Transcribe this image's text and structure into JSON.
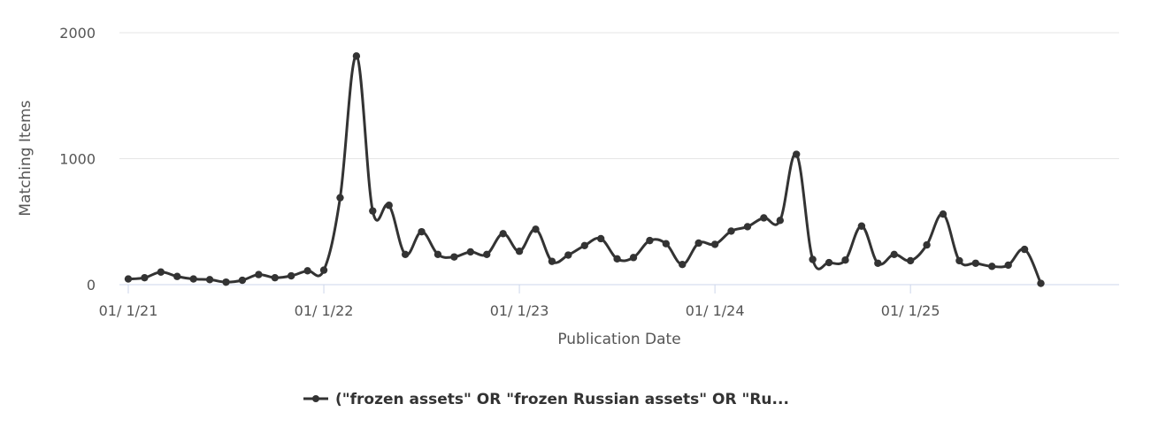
{
  "chart_data": {
    "type": "line",
    "ylabel": "Matching Items",
    "xlabel": "Publication Date",
    "x_tick_labels": [
      "01/ 1/21",
      "01/ 1/22",
      "01/ 1/23",
      "01/ 1/24",
      "01/ 1/25"
    ],
    "y_tick_labels": [
      "0",
      "1000",
      "2000"
    ],
    "ylim": [
      0,
      2000
    ],
    "x_range_months": "2021-01 to 2025-09",
    "grid": "horizontal",
    "legend_position": "bottom-center",
    "series": [
      {
        "name": "(\"frozen assets\" OR \"frozen Russian assets\" OR \"Ru...",
        "color": "#333333",
        "x": [
          "2021-01",
          "2021-02",
          "2021-03",
          "2021-04",
          "2021-05",
          "2021-06",
          "2021-07",
          "2021-08",
          "2021-09",
          "2021-10",
          "2021-11",
          "2021-12",
          "2022-01",
          "2022-02",
          "2022-03",
          "2022-04",
          "2022-05",
          "2022-06",
          "2022-07",
          "2022-08",
          "2022-09",
          "2022-10",
          "2022-11",
          "2022-12",
          "2023-01",
          "2023-02",
          "2023-03",
          "2023-04",
          "2023-05",
          "2023-06",
          "2023-07",
          "2023-08",
          "2023-09",
          "2023-10",
          "2023-11",
          "2023-12",
          "2024-01",
          "2024-02",
          "2024-03",
          "2024-04",
          "2024-05",
          "2024-06",
          "2024-07",
          "2024-08",
          "2024-09",
          "2024-10",
          "2024-11",
          "2024-12",
          "2025-01",
          "2025-02",
          "2025-03",
          "2025-04",
          "2025-05",
          "2025-06",
          "2025-07",
          "2025-08",
          "2025-09"
        ],
        "values": [
          45,
          55,
          100,
          65,
          45,
          40,
          20,
          35,
          80,
          55,
          70,
          110,
          115,
          690,
          1815,
          585,
          630,
          240,
          420,
          240,
          220,
          260,
          240,
          405,
          265,
          440,
          185,
          235,
          310,
          365,
          205,
          215,
          350,
          325,
          160,
          330,
          320,
          425,
          460,
          530,
          510,
          1035,
          200,
          175,
          195,
          465,
          170,
          240,
          190,
          315,
          560,
          190,
          170,
          145,
          155,
          280,
          10
        ]
      }
    ]
  }
}
